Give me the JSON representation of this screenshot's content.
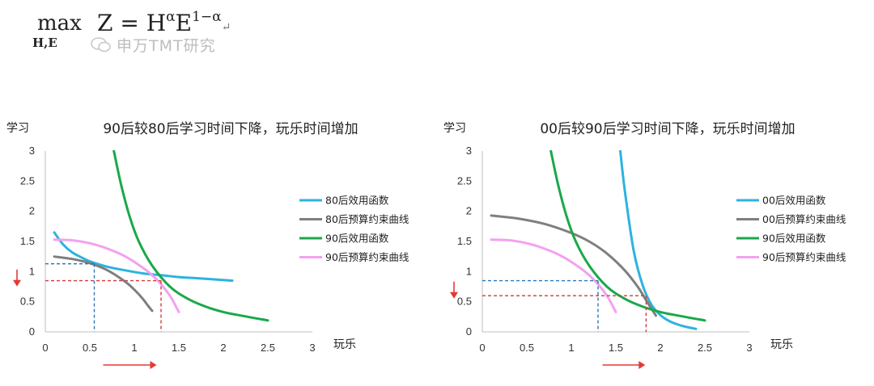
{
  "formula": {
    "max_label": "max",
    "subscript": "H,E",
    "expression": "Z = H",
    "exp1": "α",
    "middle": "E",
    "exp2": "1−α",
    "return_mark": "↵"
  },
  "watermark": {
    "text": "申万TMT研究"
  },
  "colors": {
    "blue": "#2cb3df",
    "gray": "#7f7f7f",
    "green": "#1aa84a",
    "pink": "#f3a1f0",
    "dashRed": "#d23a3a",
    "dashBlue": "#2c77b8",
    "arrowRed": "#e53935"
  },
  "chart_data": [
    {
      "type": "line",
      "title": "90后较80后学习时间下降，玩乐时间增加",
      "xlabel": "玩乐",
      "ylabel": "学习",
      "xlim": [
        0,
        3
      ],
      "ylim": [
        0,
        3
      ],
      "xticks": [
        "0",
        "0.5",
        "1",
        "1.5",
        "2",
        "2.5",
        "3"
      ],
      "yticks": [
        "0",
        "0.5",
        "1",
        "1.5",
        "2",
        "2.5",
        "3"
      ],
      "legend_position": "right",
      "series": [
        {
          "name": "80后效用函数",
          "color": "#2cb3df",
          "x": [
            0.1,
            0.2,
            0.3,
            0.4,
            0.5,
            0.7,
            0.9,
            1.1,
            1.3,
            1.5,
            1.7,
            1.9,
            2.1
          ],
          "y": [
            1.65,
            1.45,
            1.32,
            1.24,
            1.17,
            1.08,
            1.02,
            0.97,
            0.94,
            0.91,
            0.89,
            0.87,
            0.85
          ]
        },
        {
          "name": "80后预算约束曲线",
          "color": "#7f7f7f",
          "x": [
            0.1,
            0.3,
            0.5,
            0.7,
            0.9,
            1.0,
            1.1,
            1.15,
            1.2
          ],
          "y": [
            1.25,
            1.21,
            1.14,
            1.02,
            0.83,
            0.7,
            0.54,
            0.44,
            0.35
          ]
        },
        {
          "name": "90后效用函数",
          "color": "#1aa84a",
          "x": [
            0.77,
            0.85,
            0.95,
            1.05,
            1.2,
            1.4,
            1.6,
            1.8,
            2.0,
            2.2,
            2.5
          ],
          "y": [
            3.0,
            2.45,
            1.9,
            1.5,
            1.1,
            0.75,
            0.55,
            0.42,
            0.33,
            0.27,
            0.19
          ]
        },
        {
          "name": "90后预算约束曲线",
          "color": "#f3a1f0",
          "x": [
            0.1,
            0.3,
            0.5,
            0.7,
            0.9,
            1.1,
            1.2,
            1.3,
            1.4,
            1.45,
            1.5
          ],
          "y": [
            1.53,
            1.52,
            1.47,
            1.38,
            1.25,
            1.06,
            0.94,
            0.79,
            0.6,
            0.47,
            0.33
          ]
        }
      ],
      "guides": [
        {
          "color": "#2c77b8",
          "x": 0.55,
          "y": 1.13
        },
        {
          "color": "#d23a3a",
          "x": 1.3,
          "y": 0.85
        }
      ],
      "arrows": {
        "down_at_y": 0.9,
        "right_from_x": 0.65,
        "right_to_x": 1.25
      }
    },
    {
      "type": "line",
      "title": "00后较90后学习时间下降，玩乐时间增加",
      "xlabel": "玩乐",
      "ylabel": "学习",
      "xlim": [
        0,
        3
      ],
      "ylim": [
        0,
        3
      ],
      "xticks": [
        "0",
        "0.5",
        "1",
        "1.5",
        "2",
        "2.5",
        "3"
      ],
      "yticks": [
        "0",
        "0.5",
        "1",
        "1.5",
        "2",
        "2.5",
        "3"
      ],
      "legend_position": "right",
      "series": [
        {
          "name": "00后效用函数",
          "color": "#2cb3df",
          "x": [
            1.55,
            1.6,
            1.7,
            1.8,
            1.9,
            2.0,
            2.1,
            2.2,
            2.3,
            2.4
          ],
          "y": [
            3.0,
            2.35,
            1.35,
            0.78,
            0.45,
            0.28,
            0.18,
            0.12,
            0.08,
            0.05
          ]
        },
        {
          "name": "00后预算约束曲线",
          "color": "#7f7f7f",
          "x": [
            0.1,
            0.4,
            0.7,
            1.0,
            1.2,
            1.4,
            1.6,
            1.75,
            1.85,
            1.95
          ],
          "y": [
            1.93,
            1.88,
            1.79,
            1.64,
            1.5,
            1.3,
            1.02,
            0.74,
            0.5,
            0.27
          ]
        },
        {
          "name": "90后效用函数",
          "color": "#1aa84a",
          "x": [
            0.77,
            0.85,
            0.95,
            1.05,
            1.2,
            1.4,
            1.6,
            1.8,
            2.0,
            2.2,
            2.5
          ],
          "y": [
            3.0,
            2.45,
            1.9,
            1.5,
            1.1,
            0.75,
            0.55,
            0.42,
            0.33,
            0.27,
            0.19
          ]
        },
        {
          "name": "90后预算约束曲线",
          "color": "#f3a1f0",
          "x": [
            0.1,
            0.3,
            0.5,
            0.7,
            0.9,
            1.1,
            1.2,
            1.3,
            1.4,
            1.45,
            1.5
          ],
          "y": [
            1.53,
            1.52,
            1.47,
            1.38,
            1.25,
            1.06,
            0.94,
            0.79,
            0.6,
            0.47,
            0.33
          ]
        }
      ],
      "guides": [
        {
          "color": "#2c77b8",
          "x": 1.3,
          "y": 0.85
        },
        {
          "color": "#d23a3a",
          "x": 1.84,
          "y": 0.6
        }
      ],
      "arrows": {
        "down_at_y": 0.7,
        "right_from_x": 1.35,
        "right_to_x": 1.83
      }
    }
  ]
}
